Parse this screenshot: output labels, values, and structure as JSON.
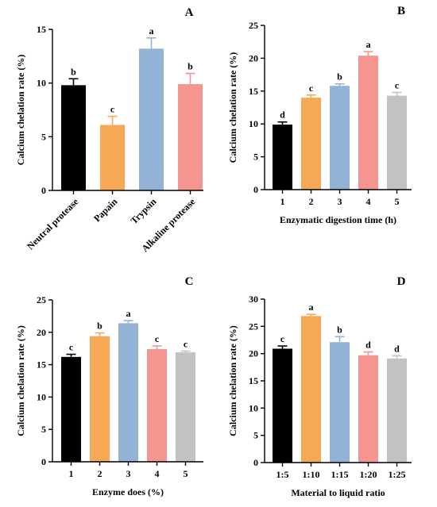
{
  "chart_data": [
    {
      "panel": "A",
      "type": "bar",
      "ylabel": "Calcium chelation rate (%)",
      "xlabel": "",
      "ylim": [
        0,
        15
      ],
      "yticks": [
        0,
        5,
        10,
        15
      ],
      "xtick_rotation": "rotated",
      "categories": [
        "Neutral protease",
        "Papain",
        "Trypsin",
        "Alkaline protease"
      ],
      "values": [
        9.8,
        6.1,
        13.2,
        9.9
      ],
      "errors": [
        0.6,
        0.8,
        1.0,
        1.0
      ],
      "letters": [
        "b",
        "c",
        "a",
        "b"
      ],
      "colors": [
        "#000000",
        "#f7a857",
        "#92b3d6",
        "#f49590"
      ]
    },
    {
      "panel": "B",
      "type": "bar",
      "ylabel": "Calcium chelation rate (%)",
      "xlabel": "Enzymatic digestion time (h)",
      "ylim": [
        0,
        25
      ],
      "yticks": [
        0,
        5,
        10,
        15,
        20,
        25
      ],
      "categories": [
        "1",
        "2",
        "3",
        "4",
        "5"
      ],
      "values": [
        9.9,
        14.0,
        15.8,
        20.4,
        14.3
      ],
      "errors": [
        0.4,
        0.4,
        0.3,
        0.6,
        0.5
      ],
      "letters": [
        "d",
        "c",
        "b",
        "a",
        "c"
      ],
      "colors": [
        "#000000",
        "#f7a857",
        "#92b3d6",
        "#f49590",
        "#c0c2c4"
      ]
    },
    {
      "panel": "C",
      "type": "bar",
      "ylabel": "Calcium chelation rate (%)",
      "xlabel": "Enzyme does (%)",
      "ylim": [
        0,
        25
      ],
      "yticks": [
        0,
        5,
        10,
        15,
        20,
        25
      ],
      "categories": [
        "1",
        "2",
        "3",
        "4",
        "5"
      ],
      "values": [
        16.2,
        19.4,
        21.4,
        17.4,
        16.9
      ],
      "errors": [
        0.4,
        0.5,
        0.4,
        0.5,
        0.2
      ],
      "letters": [
        "c",
        "b",
        "a",
        "c",
        "c"
      ],
      "colors": [
        "#000000",
        "#f7a857",
        "#92b3d6",
        "#f49590",
        "#c0c2c4"
      ]
    },
    {
      "panel": "D",
      "type": "bar",
      "ylabel": "Calcium chelation rate (%)",
      "xlabel": "Material to liquid ratio",
      "ylim": [
        0,
        30
      ],
      "yticks": [
        0,
        5,
        10,
        15,
        20,
        25,
        30
      ],
      "categories": [
        "1:5",
        "1:10",
        "1:15",
        "1:20",
        "1:25"
      ],
      "values": [
        20.9,
        26.9,
        22.1,
        19.7,
        19.1
      ],
      "errors": [
        0.5,
        0.3,
        1.0,
        0.6,
        0.5
      ],
      "letters": [
        "c",
        "a",
        "b",
        "d",
        "d"
      ],
      "colors": [
        "#000000",
        "#f7a857",
        "#92b3d6",
        "#f49590",
        "#c0c2c4"
      ]
    }
  ]
}
